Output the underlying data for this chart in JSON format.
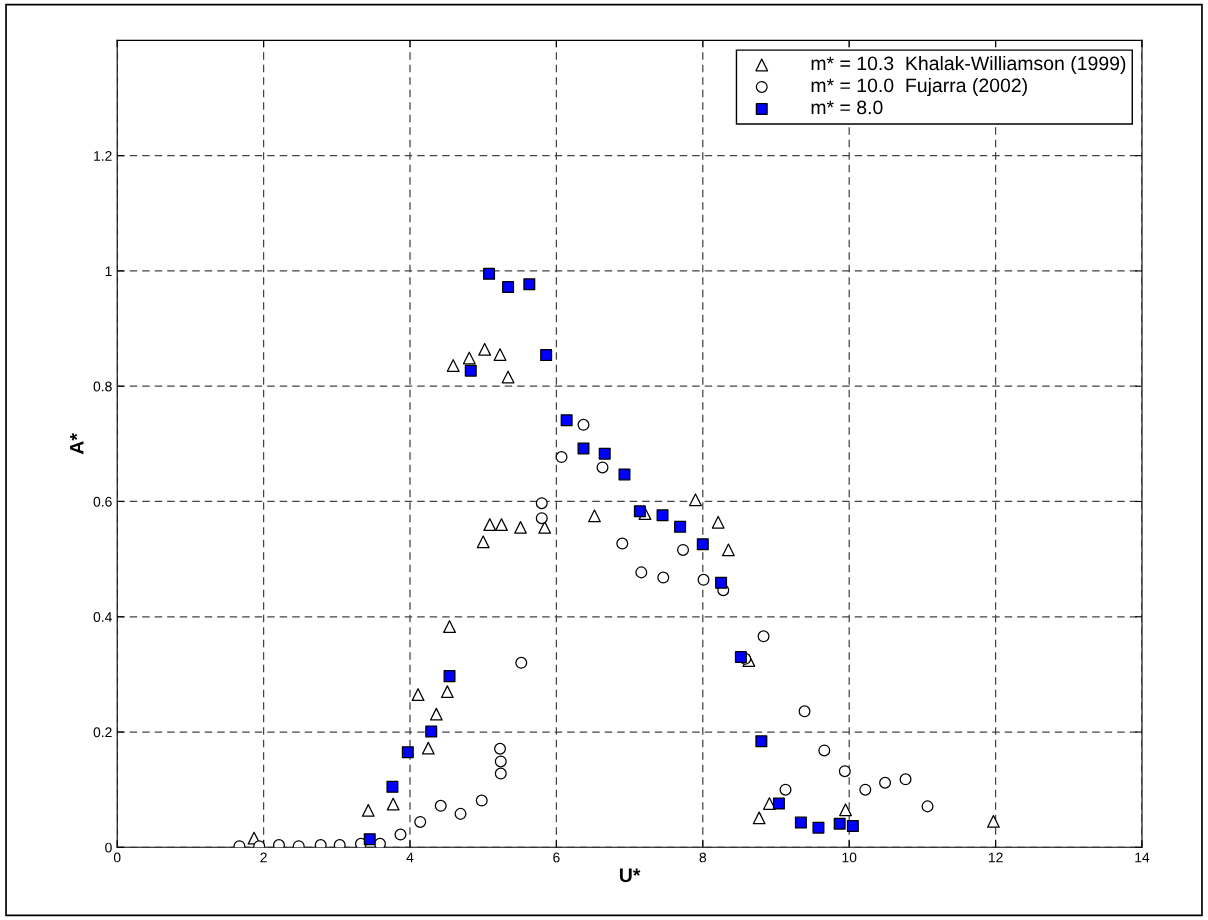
{
  "chart_data": {
    "type": "scatter",
    "xlabel": "U*",
    "ylabel": "A*",
    "xlim": [
      0,
      14
    ],
    "ylim": [
      0,
      1.4
    ],
    "xticks": [
      0,
      2,
      4,
      6,
      8,
      10,
      12,
      14
    ],
    "yticks": [
      0,
      0.2,
      0.4,
      0.6,
      0.8,
      1,
      1.2
    ],
    "grid": true,
    "legend": "top right",
    "series": [
      {
        "name": "m* = 10.3  Khalak-Williamson (1999)",
        "color": "#000000",
        "marker": "triangle",
        "x": [
          1.87,
          3.43,
          3.77,
          4.11,
          4.25,
          4.36,
          4.51,
          4.54,
          5.0,
          5.09,
          5.25,
          5.51,
          5.84,
          6.52,
          4.59,
          4.81,
          5.02,
          5.23,
          5.34,
          7.21,
          7.9,
          8.21,
          8.35,
          8.63,
          8.77,
          8.91,
          9.95,
          11.97
        ],
        "values": [
          0.016,
          0.064,
          0.075,
          0.265,
          0.172,
          0.231,
          0.27,
          0.383,
          0.53,
          0.56,
          0.56,
          0.555,
          0.555,
          0.575,
          0.836,
          0.849,
          0.864,
          0.855,
          0.816,
          0.579,
          0.603,
          0.564,
          0.516,
          0.324,
          0.051,
          0.076,
          0.065,
          0.045
        ]
      },
      {
        "name": "m* = 10.0  Fujarra (2002)",
        "color": "#000000",
        "marker": "circle",
        "x": [
          1.67,
          1.94,
          2.21,
          2.48,
          2.78,
          3.04,
          3.33,
          3.59,
          3.87,
          4.14,
          4.42,
          4.69,
          4.98,
          5.23,
          5.24,
          5.24,
          5.52,
          5.8,
          5.8,
          6.07,
          6.37,
          6.63,
          6.9,
          7.16,
          7.46,
          7.73,
          8.01,
          8.28,
          8.58,
          8.83,
          9.13,
          9.39,
          9.66,
          9.94,
          10.22,
          10.49,
          10.77,
          11.07
        ],
        "values": [
          0.002,
          0.002,
          0.004,
          0.002,
          0.004,
          0.004,
          0.006,
          0.006,
          0.022,
          0.044,
          0.072,
          0.058,
          0.081,
          0.171,
          0.149,
          0.128,
          0.32,
          0.571,
          0.597,
          0.677,
          0.733,
          0.659,
          0.527,
          0.477,
          0.468,
          0.516,
          0.464,
          0.446,
          0.327,
          0.366,
          0.1,
          0.236,
          0.168,
          0.132,
          0.1,
          0.112,
          0.118,
          0.071
        ]
      },
      {
        "name": "m* = 8.0",
        "color": "#0000ff",
        "marker": "square",
        "x": [
          3.45,
          3.76,
          3.97,
          4.29,
          4.54,
          4.83,
          5.08,
          5.34,
          5.63,
          5.86,
          6.14,
          6.37,
          6.66,
          6.93,
          7.14,
          7.45,
          7.69,
          8.0,
          8.25,
          8.52,
          8.8,
          9.04,
          9.34,
          9.58,
          9.87,
          10.05
        ],
        "values": [
          0.014,
          0.105,
          0.165,
          0.201,
          0.297,
          0.827,
          0.995,
          0.972,
          0.977,
          0.854,
          0.741,
          0.692,
          0.683,
          0.647,
          0.583,
          0.576,
          0.556,
          0.526,
          0.459,
          0.33,
          0.184,
          0.076,
          0.043,
          0.034,
          0.041,
          0.037
        ]
      }
    ]
  }
}
